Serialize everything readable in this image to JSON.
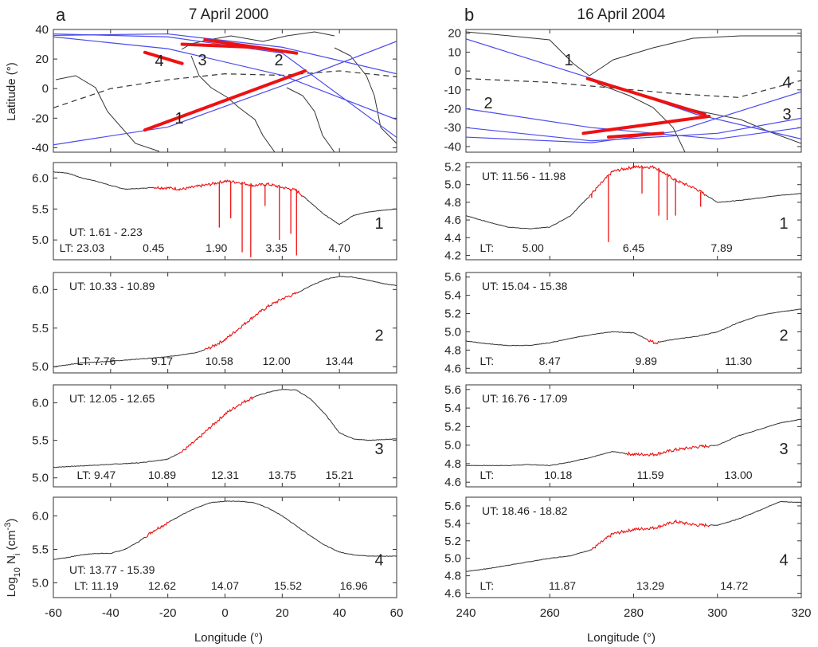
{
  "figure": {
    "panel_a": {
      "letter": "a",
      "title": "7 April 2000"
    },
    "panel_b": {
      "letter": "b",
      "title": "16 April 2004"
    }
  },
  "colors": {
    "orbit": "#4a4aee",
    "highlight": "#ee1111",
    "density": "#333333",
    "coast": "#333333",
    "axis": "#333333"
  },
  "chart_data": [
    {
      "id": "a_map",
      "type": "line",
      "title": "7 April 2000",
      "xlabel": "",
      "ylabel": "Latitude (°)",
      "xlim": [
        -60,
        60
      ],
      "ylim": [
        -43,
        40
      ],
      "yticks": [
        "-40",
        "-20",
        "0",
        "20",
        "40"
      ],
      "xticks": [],
      "series": [
        {
          "label": "4",
          "orbit": [
            [
              -60,
              35
            ],
            [
              -20,
              27
            ],
            [
              20,
              9
            ],
            [
              60,
              -21
            ]
          ],
          "highlight": [
            [
              -28,
              24.5
            ],
            [
              -15,
              17
            ]
          ]
        },
        {
          "label": "3",
          "orbit": [
            [
              -60,
              37
            ],
            [
              -20,
              35
            ],
            [
              20,
              24
            ],
            [
              60,
              -33
            ]
          ],
          "highlight": [
            [
              -15,
              30
            ],
            [
              10,
              28
            ]
          ]
        },
        {
          "label": "2",
          "orbit": [
            [
              -60,
              36
            ],
            [
              -20,
              37
            ],
            [
              20,
              28
            ],
            [
              60,
              10
            ]
          ],
          "highlight": [
            [
              -7,
              33
            ],
            [
              25,
              24
            ]
          ]
        },
        {
          "label": "1",
          "orbit": [
            [
              -60,
              -38
            ],
            [
              -20,
              -26
            ],
            [
              20,
              2
            ],
            [
              60,
              32
            ]
          ],
          "highlight": [
            [
              -28,
              -28
            ],
            [
              28,
              12
            ]
          ]
        }
      ],
      "terminator": [
        [
          -60,
          -13
        ],
        [
          -40,
          0
        ],
        [
          -20,
          6
        ],
        [
          0,
          10
        ],
        [
          20,
          9
        ],
        [
          40,
          12
        ],
        [
          60,
          8
        ]
      ]
    },
    {
      "id": "b_map",
      "type": "line",
      "title": "16 April 2004",
      "xlabel": "",
      "ylabel": "",
      "xlim": [
        240,
        320
      ],
      "ylim": [
        -43,
        22
      ],
      "yticks": [
        "-40",
        "-30",
        "-20",
        "-10",
        "0",
        "10",
        "20"
      ],
      "xticks": [],
      "series": [
        {
          "label": "1",
          "orbit": [
            [
              240,
              17
            ],
            [
              270,
              -4
            ],
            [
              295,
              -23
            ],
            [
              320,
              -36
            ]
          ],
          "highlight": [
            [
              269,
              -4
            ],
            [
              297,
              -23
            ]
          ]
        },
        {
          "label": "2",
          "orbit": [
            [
              240,
              -20
            ],
            [
              270,
              -30
            ],
            [
              300,
              -36
            ],
            [
              320,
              -30
            ]
          ],
          "highlight": []
        },
        {
          "label": "3",
          "orbit": [
            [
              240,
              -35
            ],
            [
              270,
              -38
            ],
            [
              290,
              -32
            ],
            [
              320,
              -11
            ]
          ],
          "highlight": [
            [
              268,
              -33
            ],
            [
              298,
              -24
            ]
          ]
        },
        {
          "label": "4",
          "orbit": [
            [
              240,
              -30
            ],
            [
              270,
              -37
            ],
            [
              300,
              -33
            ],
            [
              320,
              -25
            ]
          ],
          "highlight": [
            [
              274,
              -35
            ],
            [
              287,
              -33
            ]
          ]
        }
      ],
      "terminator": [
        [
          240,
          -4
        ],
        [
          260,
          -6
        ],
        [
          290,
          -12
        ],
        [
          305,
          -14
        ],
        [
          320,
          -5
        ]
      ]
    },
    {
      "id": "a_orbit1",
      "type": "line",
      "orbit": "1",
      "xlim": [
        -60,
        60
      ],
      "ylim": [
        4.68,
        6.25
      ],
      "yticks": [
        "5.0",
        "5.5",
        "6.0"
      ],
      "ut": "UT: 1.61 - 2.23",
      "lt": [
        "LT: 23.03",
        "0.45",
        "1.90",
        "3.35",
        "4.70"
      ],
      "lt_pos": [
        -50,
        -25,
        -3,
        18,
        40
      ],
      "label_x_pos": [
        -58,
        -25,
        -3,
        18,
        40
      ],
      "x": [
        -60,
        -55,
        -50,
        -45,
        -40,
        -35,
        -30,
        -25,
        -20,
        -15,
        -10,
        -5,
        0,
        5,
        10,
        15,
        20,
        25,
        30,
        35,
        40,
        45,
        50,
        55,
        60
      ],
      "values": [
        6.1,
        6.08,
        6.0,
        5.95,
        5.88,
        5.82,
        5.83,
        5.85,
        5.84,
        5.82,
        5.86,
        5.9,
        5.95,
        5.93,
        5.88,
        5.9,
        5.85,
        5.8,
        5.6,
        5.4,
        5.25,
        5.4,
        5.45,
        5.48,
        5.5
      ],
      "highlight": [
        -25,
        27
      ],
      "dips": [
        [
          -2,
          5.2
        ],
        [
          2,
          5.35
        ],
        [
          6,
          4.8
        ],
        [
          9,
          4.72
        ],
        [
          14,
          5.55
        ],
        [
          19,
          5.0
        ],
        [
          23,
          5.1
        ],
        [
          25,
          4.75
        ]
      ]
    },
    {
      "id": "a_orbit2",
      "type": "line",
      "orbit": "2",
      "xlim": [
        -60,
        60
      ],
      "ylim": [
        4.92,
        6.22
      ],
      "yticks": [
        "5.0",
        "5.5",
        "6.0"
      ],
      "ut": "UT: 10.33 - 10.89",
      "lt": [
        "LT: 7.76",
        "9.17",
        "10.58",
        "12.00",
        "13.44"
      ],
      "lt_pos": [
        -45,
        -22,
        -2,
        18,
        40
      ],
      "x": [
        -60,
        -50,
        -40,
        -30,
        -20,
        -10,
        -5,
        0,
        5,
        10,
        15,
        20,
        25,
        30,
        35,
        40,
        45,
        50,
        55,
        60
      ],
      "values": [
        5.0,
        5.05,
        5.07,
        5.1,
        5.13,
        5.18,
        5.25,
        5.35,
        5.5,
        5.65,
        5.78,
        5.88,
        5.95,
        6.05,
        6.13,
        6.17,
        6.16,
        6.12,
        6.08,
        6.05
      ],
      "highlight": [
        -7,
        25
      ]
    },
    {
      "id": "a_orbit3",
      "type": "line",
      "orbit": "3",
      "xlim": [
        -60,
        60
      ],
      "ylim": [
        4.88,
        6.24
      ],
      "yticks": [
        "5.0",
        "5.5",
        "6.0"
      ],
      "ut": "UT: 12.05 - 12.65",
      "lt": [
        "LT: 9.47",
        "10.89",
        "12.31",
        "13.75",
        "15.21"
      ],
      "lt_pos": [
        -45,
        -22,
        0,
        20,
        40
      ],
      "x": [
        -60,
        -50,
        -40,
        -30,
        -20,
        -15,
        -10,
        -5,
        0,
        5,
        10,
        15,
        20,
        25,
        30,
        35,
        40,
        45,
        50,
        55,
        60
      ],
      "values": [
        5.14,
        5.16,
        5.18,
        5.2,
        5.25,
        5.35,
        5.5,
        5.68,
        5.85,
        5.98,
        6.08,
        6.14,
        6.18,
        6.17,
        6.05,
        5.85,
        5.6,
        5.52,
        5.5,
        5.51,
        5.52
      ],
      "highlight": [
        -16,
        10
      ]
    },
    {
      "id": "a_orbit4",
      "type": "line",
      "orbit": "4",
      "xlim": [
        -60,
        60
      ],
      "ylim": [
        4.78,
        6.28
      ],
      "yticks": [
        "5.0",
        "5.5",
        "6.0"
      ],
      "ut": "UT: 13.77 - 15.39",
      "lt": [
        "LT: 11.19",
        "12.62",
        "14.07",
        "15.52",
        "16.96"
      ],
      "lt_pos": [
        -45,
        -22,
        0,
        22,
        45
      ],
      "x": [
        -60,
        -55,
        -50,
        -45,
        -40,
        -35,
        -30,
        -25,
        -20,
        -15,
        -10,
        -5,
        0,
        5,
        10,
        15,
        20,
        25,
        30,
        35,
        40,
        45,
        50,
        55,
        60
      ],
      "values": [
        5.35,
        5.38,
        5.42,
        5.44,
        5.44,
        5.5,
        5.62,
        5.78,
        5.9,
        6.02,
        6.12,
        6.2,
        6.22,
        6.22,
        6.2,
        6.12,
        6.0,
        5.85,
        5.7,
        5.56,
        5.46,
        5.42,
        5.4,
        5.4,
        5.4
      ],
      "highlight": [
        -28,
        -20
      ]
    },
    {
      "id": "b_orbit1",
      "type": "line",
      "orbit": "1",
      "xlim": [
        240,
        320
      ],
      "ylim": [
        4.15,
        5.25
      ],
      "yticks": [
        "4.2",
        "4.4",
        "4.6",
        "4.8",
        "5.0",
        "5.2"
      ],
      "ut": "UT: 11.56 - 11.98",
      "lt": [
        "LT:",
        "5.00",
        "6.45",
        "7.89"
      ],
      "lt_pos": [
        245,
        256,
        280,
        301
      ],
      "x": [
        240,
        245,
        250,
        255,
        260,
        265,
        268,
        270,
        275,
        280,
        285,
        290,
        295,
        300,
        305,
        310,
        315,
        320
      ],
      "values": [
        4.65,
        4.58,
        4.52,
        4.5,
        4.52,
        4.65,
        4.8,
        4.9,
        5.15,
        5.2,
        5.2,
        5.05,
        4.95,
        4.8,
        4.82,
        4.85,
        4.88,
        4.9
      ],
      "highlight": [
        269,
        297
      ],
      "dips": [
        [
          270,
          4.85
        ],
        [
          274,
          4.35
        ],
        [
          282,
          4.9
        ],
        [
          286,
          4.65
        ],
        [
          288,
          4.6
        ],
        [
          290,
          4.65
        ],
        [
          296,
          4.75
        ]
      ]
    },
    {
      "id": "b_orbit2",
      "type": "line",
      "orbit": "2",
      "xlim": [
        240,
        320
      ],
      "ylim": [
        4.55,
        5.65
      ],
      "yticks": [
        "4.6",
        "4.8",
        "5.0",
        "5.2",
        "5.4",
        "5.6"
      ],
      "ut": "UT: 15.04 - 15.38",
      "lt": [
        "LT:",
        "8.47",
        "9.89",
        "11.30"
      ],
      "lt_pos": [
        245,
        260,
        283,
        305
      ],
      "x": [
        240,
        245,
        250,
        255,
        260,
        265,
        270,
        275,
        280,
        285,
        290,
        295,
        300,
        305,
        310,
        315,
        320
      ],
      "values": [
        4.9,
        4.87,
        4.85,
        4.85,
        4.88,
        4.93,
        4.97,
        5.0,
        4.99,
        4.88,
        4.92,
        4.95,
        5.0,
        5.1,
        5.18,
        5.22,
        5.25
      ],
      "highlight": [
        283,
        286
      ]
    },
    {
      "id": "b_orbit3",
      "type": "line",
      "orbit": "3",
      "xlim": [
        240,
        320
      ],
      "ylim": [
        4.55,
        5.65
      ],
      "yticks": [
        "4.6",
        "4.8",
        "5.0",
        "5.2",
        "5.4",
        "5.6"
      ],
      "ut": "UT: 16.76 - 17.09",
      "lt": [
        "LT:",
        "10.18",
        "11.59",
        "13.00"
      ],
      "lt_pos": [
        245,
        262,
        284,
        305
      ],
      "x": [
        240,
        245,
        250,
        255,
        260,
        265,
        270,
        275,
        280,
        285,
        290,
        295,
        300,
        305,
        310,
        315,
        320
      ],
      "values": [
        4.78,
        4.78,
        4.78,
        4.79,
        4.78,
        4.82,
        4.87,
        4.93,
        4.9,
        4.9,
        4.95,
        4.98,
        5.0,
        5.1,
        5.17,
        5.24,
        5.28
      ],
      "highlight": [
        278,
        298
      ]
    },
    {
      "id": "b_orbit4",
      "type": "line",
      "orbit": "4",
      "xlim": [
        240,
        320
      ],
      "ylim": [
        4.55,
        5.7
      ],
      "yticks": [
        "4.6",
        "4.8",
        "5.0",
        "5.2",
        "5.4",
        "5.6"
      ],
      "ut": "UT: 18.46 - 18.82",
      "lt": [
        "LT:",
        "11.87",
        "13.29",
        "14.72"
      ],
      "lt_pos": [
        245,
        263,
        284,
        304
      ],
      "x": [
        240,
        245,
        250,
        255,
        260,
        265,
        270,
        275,
        280,
        285,
        290,
        295,
        300,
        305,
        310,
        315,
        320
      ],
      "values": [
        4.85,
        4.88,
        4.92,
        4.96,
        5.0,
        5.03,
        5.1,
        5.28,
        5.33,
        5.35,
        5.42,
        5.38,
        5.38,
        5.45,
        5.55,
        5.65,
        5.64
      ],
      "highlight": [
        270,
        298
      ]
    }
  ],
  "axes": {
    "ylabel_map": "Latitude (°)",
    "ylabel_density": "Log",
    "ylabel_density_sub": "10",
    "ylabel_density_n": " N",
    "ylabel_density_i": "i",
    "ylabel_density_unit": " (cm",
    "ylabel_density_exp": "-3",
    "ylabel_density_close": ")",
    "xlabel_a": "Longitude (°)",
    "xlabel_b": "Longitude (°)",
    "xticks_a": [
      "-60",
      "-40",
      "-20",
      "0",
      "20",
      "40",
      "60"
    ],
    "xticks_b": [
      "240",
      "260",
      "280",
      "300",
      "320"
    ]
  }
}
